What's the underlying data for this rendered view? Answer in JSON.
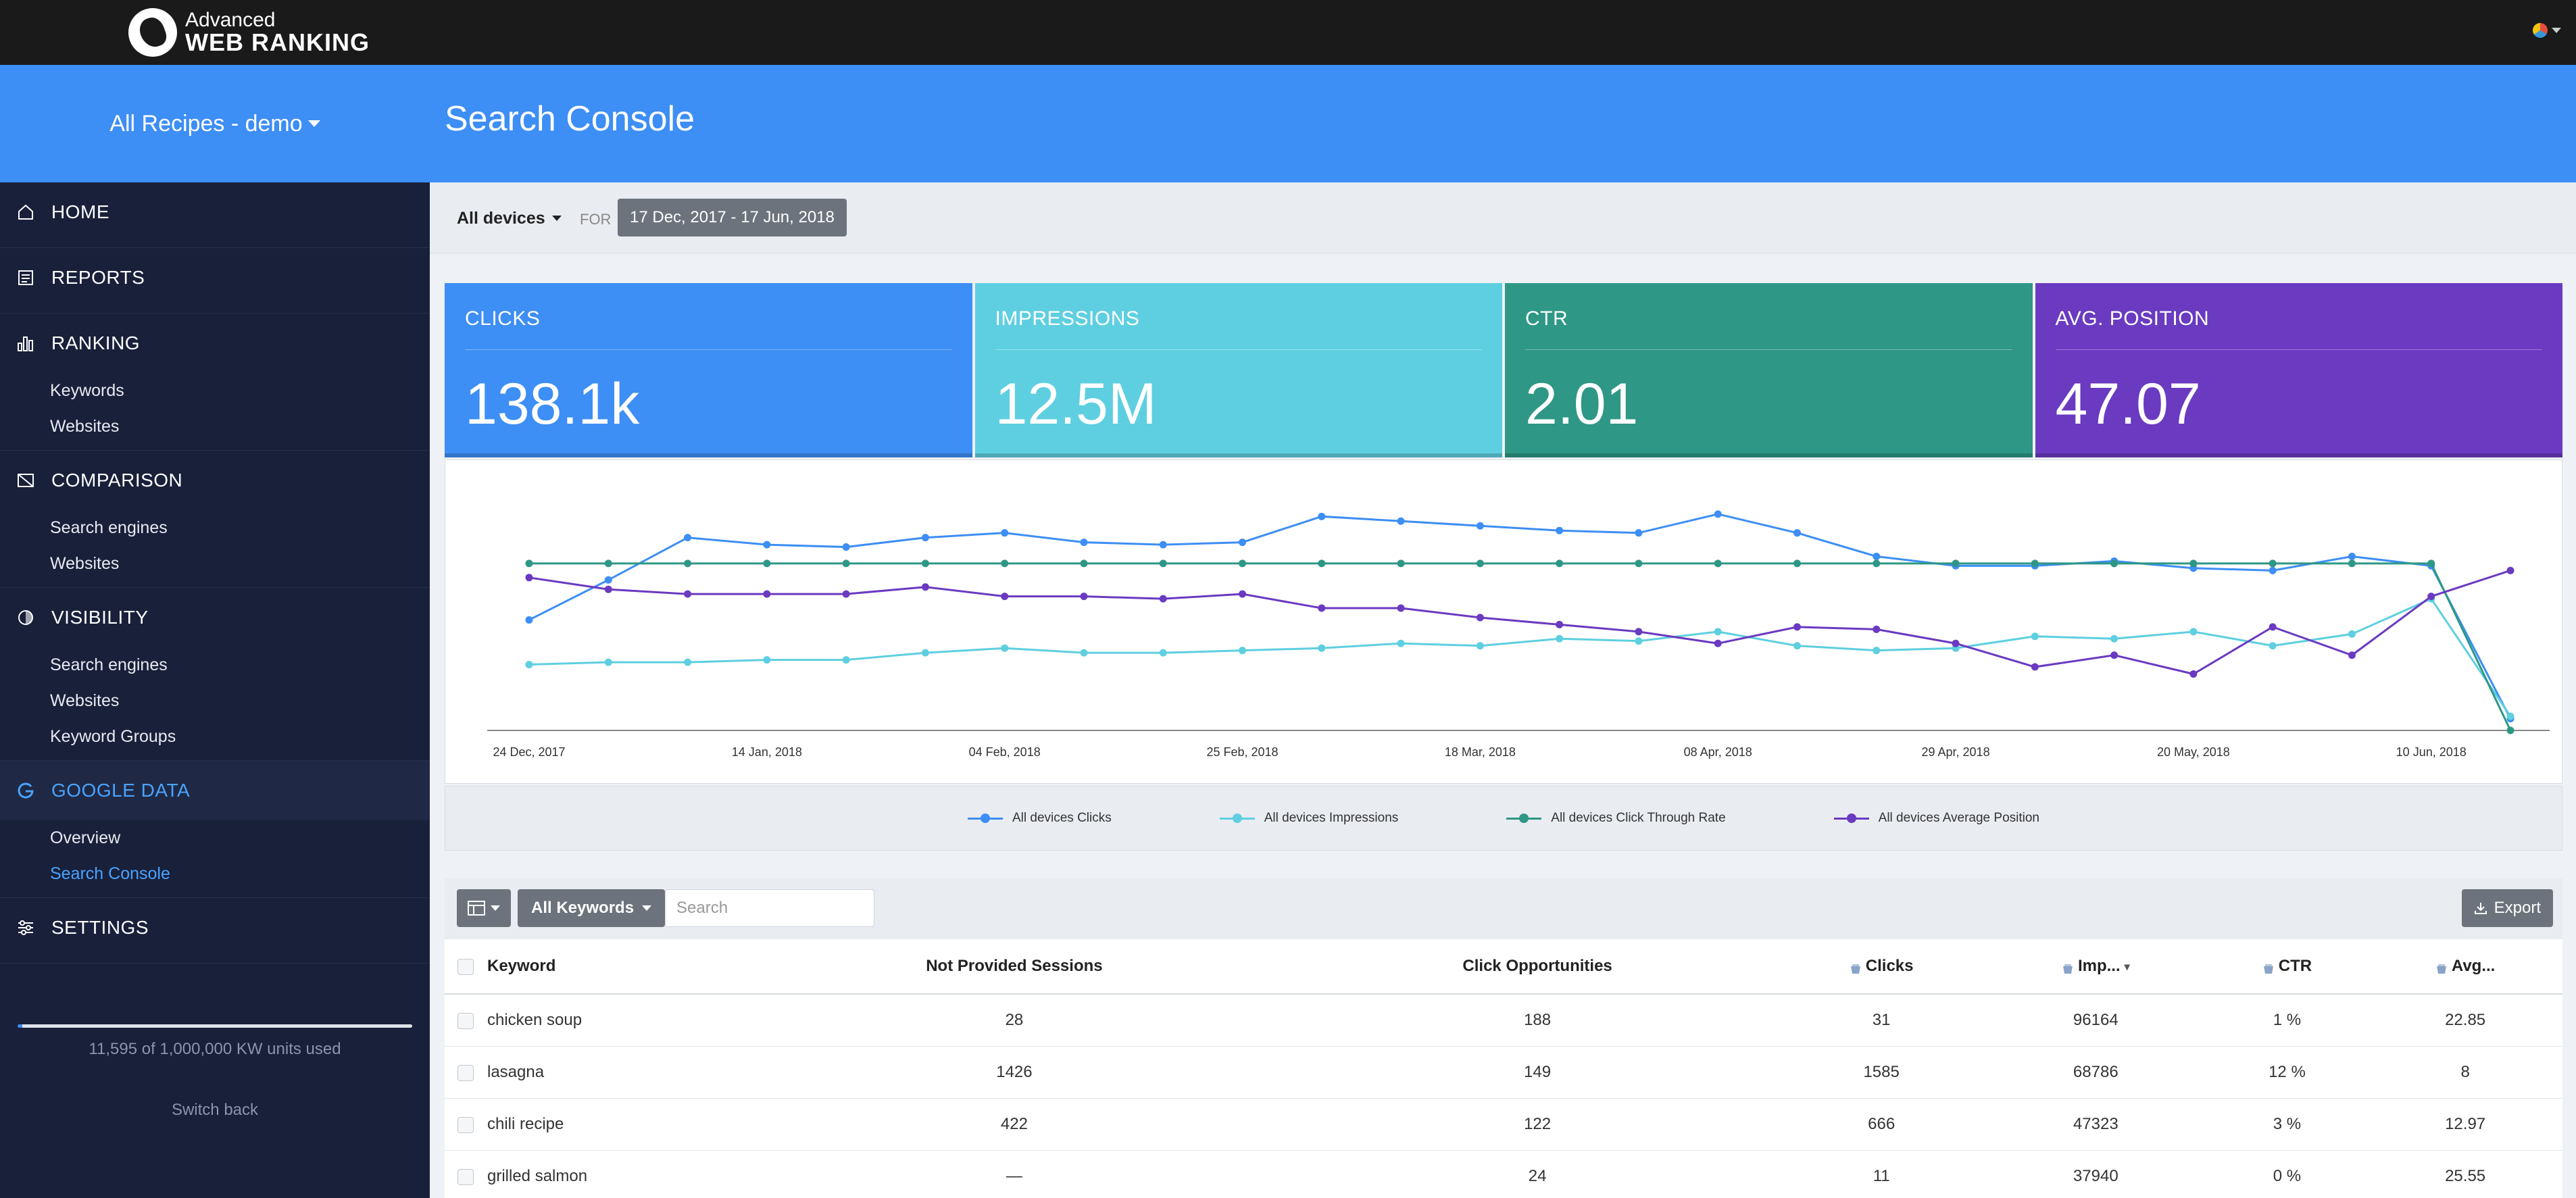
{
  "app": {
    "logo_line1": "Advanced",
    "logo_line2": "WEB RANKING"
  },
  "sidebar": {
    "project": "All Recipes - demo",
    "sections": [
      {
        "label": "HOME",
        "icon": "home-icon",
        "subs": []
      },
      {
        "label": "REPORTS",
        "icon": "reports-icon",
        "subs": []
      },
      {
        "label": "RANKING",
        "icon": "bar-chart-icon",
        "subs": [
          "Keywords",
          "Websites"
        ]
      },
      {
        "label": "COMPARISON",
        "icon": "comparison-icon",
        "subs": [
          "Search engines",
          "Websites"
        ]
      },
      {
        "label": "VISIBILITY",
        "icon": "visibility-icon",
        "subs": [
          "Search engines",
          "Websites",
          "Keyword Groups"
        ]
      },
      {
        "label": "GOOGLE DATA",
        "icon": "google-icon",
        "subs": [
          "Overview",
          "Search Console"
        ]
      },
      {
        "label": "SETTINGS",
        "icon": "settings-icon",
        "subs": []
      }
    ],
    "units_text": "11,595 of 1,000,000 KW units used",
    "units_fraction": 0.0116,
    "switch_back": "Switch back"
  },
  "page": {
    "title": "Search Console"
  },
  "filters": {
    "device": "All devices",
    "for_label": "FOR",
    "date_range": "17 Dec, 2017 - 17 Jun, 2018"
  },
  "metrics": [
    {
      "label": "CLICKS",
      "value": "138.1k",
      "color": "#3d8ef5"
    },
    {
      "label": "IMPRESSIONS",
      "value": "12.5M",
      "color": "#5ecfe0"
    },
    {
      "label": "CTR",
      "value": "2.01",
      "color": "#2e9785"
    },
    {
      "label": "AVG. POSITION",
      "value": "47.07",
      "color": "#6a3ac1"
    }
  ],
  "chart_data": {
    "type": "line",
    "x_tick_labels": [
      "24 Dec, 2017",
      "14 Jan, 2018",
      "04 Feb, 2018",
      "25 Feb, 2018",
      "18 Mar, 2018",
      "08 Apr, 2018",
      "29 Apr, 2018",
      "20 May, 2018",
      "10 Jun, 2018"
    ],
    "x_points": 26,
    "ylim": [
      0,
      100
    ],
    "grid": false,
    "legend_position": "bottom",
    "series": [
      {
        "name": "All devices Clicks",
        "color": "#3d8ef5",
        "values": [
          47,
          64,
          82,
          79,
          78,
          82,
          84,
          80,
          79,
          80,
          91,
          89,
          87,
          85,
          84,
          92,
          84,
          74,
          70,
          70,
          72,
          69,
          68,
          74,
          70,
          5
        ]
      },
      {
        "name": "All devices Impressions",
        "color": "#5ecfe0",
        "values": [
          28,
          29,
          29,
          30,
          30,
          33,
          35,
          33,
          33,
          34,
          35,
          37,
          36,
          39,
          38,
          42,
          36,
          34,
          35,
          40,
          39,
          42,
          36,
          41,
          56,
          6
        ]
      },
      {
        "name": "All devices Click Through Rate",
        "color": "#2e9785",
        "values": [
          71,
          71,
          71,
          71,
          71,
          71,
          71,
          71,
          71,
          71,
          71,
          71,
          71,
          71,
          71,
          71,
          71,
          71,
          71,
          71,
          71,
          71,
          71,
          71,
          71,
          0
        ]
      },
      {
        "name": "All devices Average Position",
        "color": "#6a3ac1",
        "values": [
          65,
          60,
          58,
          58,
          58,
          61,
          57,
          57,
          56,
          58,
          52,
          52,
          48,
          45,
          42,
          37,
          44,
          43,
          37,
          27,
          32,
          24,
          44,
          32,
          57,
          68
        ]
      }
    ]
  },
  "table": {
    "toolbar": {
      "keywords_filter": "All Keywords",
      "search_placeholder": "Search",
      "export_label": "Export"
    },
    "headers": [
      "Keyword",
      "Not Provided Sessions",
      "Click Opportunities",
      "Clicks",
      "Imp...",
      "CTR",
      "Avg..."
    ],
    "rows": [
      [
        "chicken soup",
        "28",
        "188",
        "31",
        "96164",
        "1 %",
        "22.85"
      ],
      [
        "lasagna",
        "1426",
        "149",
        "1585",
        "68786",
        "12 %",
        "8"
      ],
      [
        "chili recipe",
        "422",
        "122",
        "666",
        "47323",
        "3 %",
        "12.97"
      ],
      [
        "grilled salmon",
        "—",
        "24",
        "11",
        "37940",
        "0 %",
        "25.55"
      ]
    ]
  }
}
